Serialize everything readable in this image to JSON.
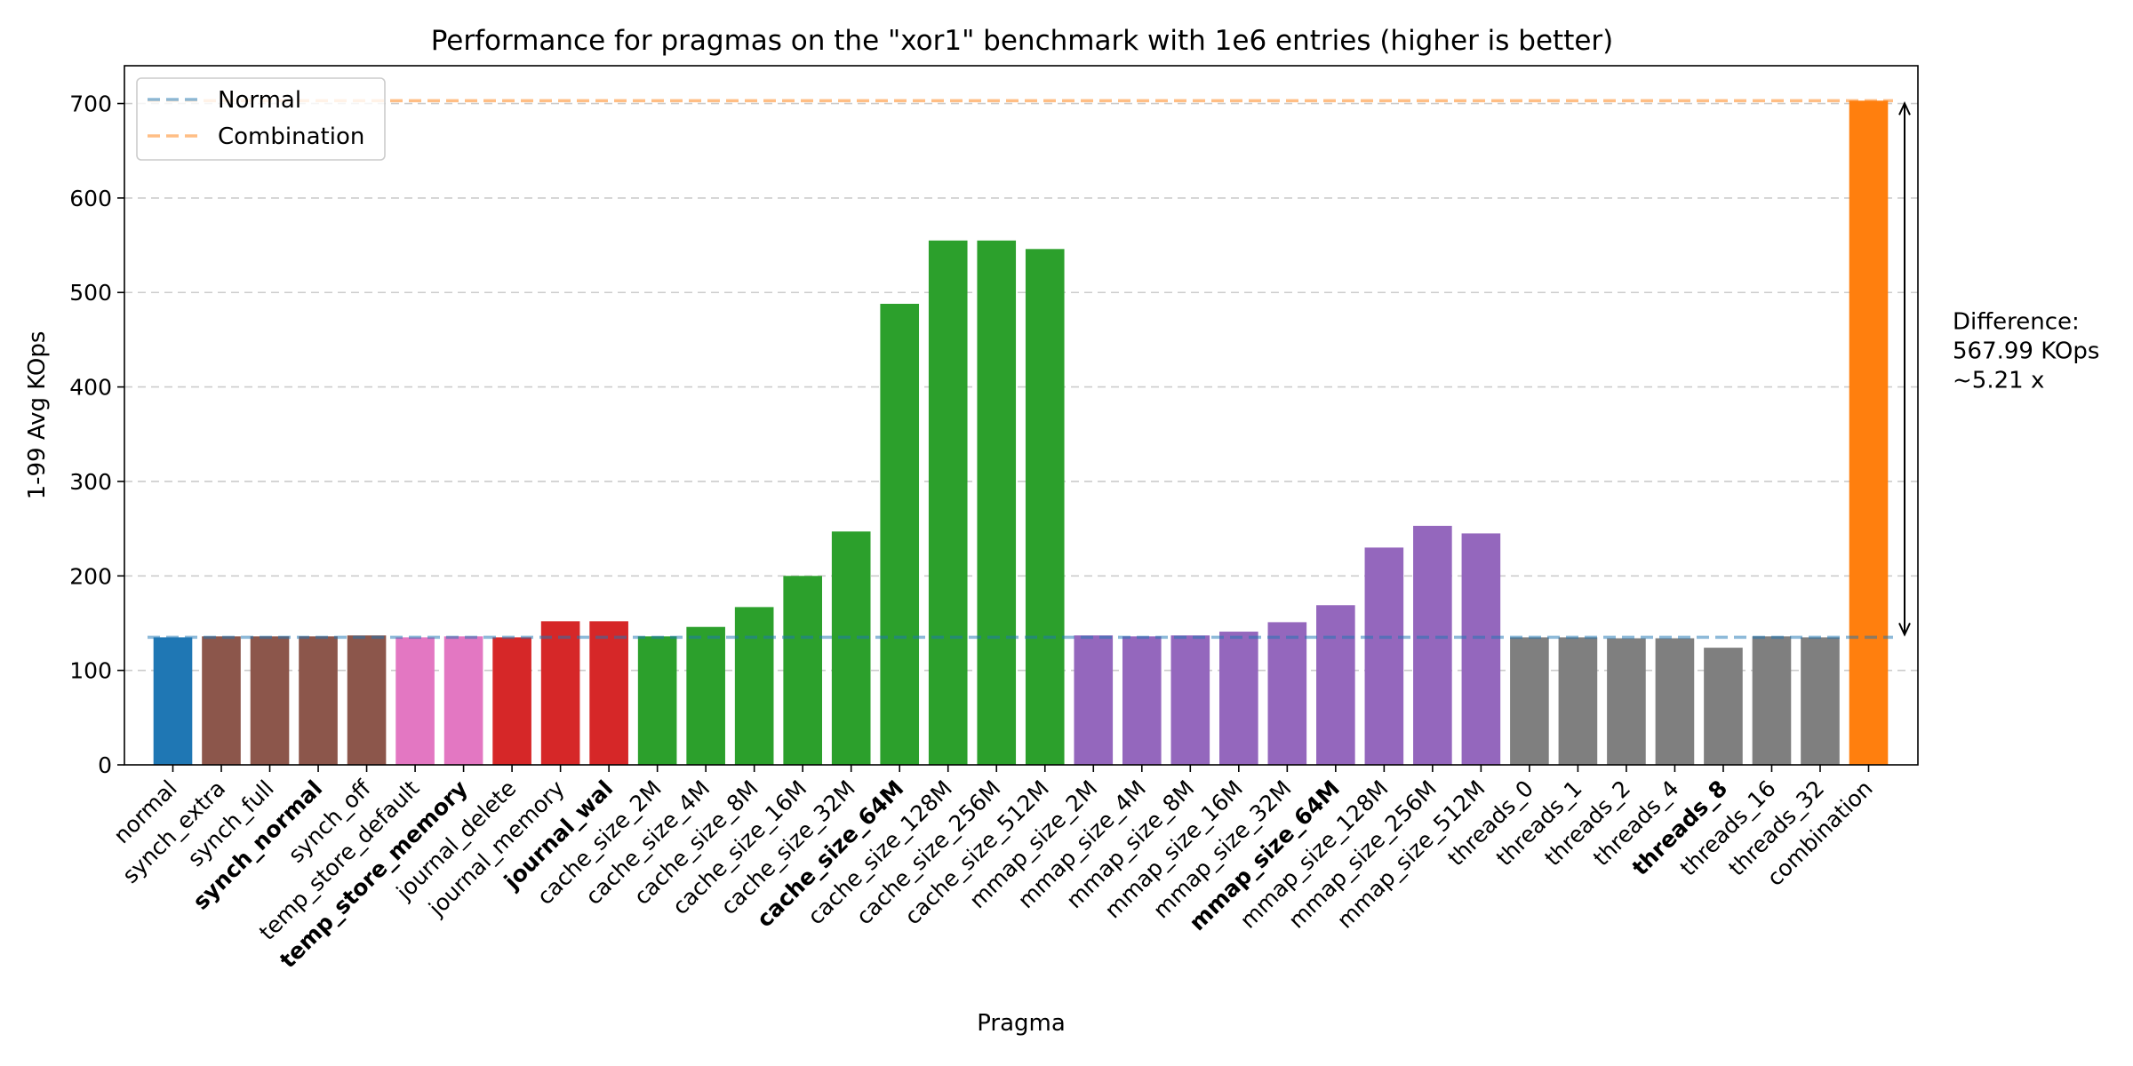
{
  "chart_data": {
    "type": "bar",
    "title": "Performance for pragmas on the \"xor1\" benchmark with 1e6 entries (higher is better)",
    "xlabel": "Pragma",
    "ylabel": "1-99 Avg KOps",
    "ylim": [
      0,
      740
    ],
    "yticks": [
      0,
      100,
      200,
      300,
      400,
      500,
      600,
      700
    ],
    "grid": "y-dashed",
    "legend": {
      "placement": "top-left",
      "entries": [
        {
          "label": "Normal",
          "color": "#1f77b4",
          "style": "dashed"
        },
        {
          "label": "Combination",
          "color": "#ff7f0e",
          "style": "dashed"
        }
      ]
    },
    "reference_lines": [
      {
        "name": "Normal",
        "value": 135,
        "color": "#1f77b4"
      },
      {
        "name": "Combination",
        "value": 703,
        "color": "#ff7f0e"
      }
    ],
    "annotation": {
      "lines": [
        "Difference:",
        "567.99 KOps",
        "~5.21 x"
      ],
      "from": 135,
      "to": 703
    },
    "bars": [
      {
        "label": "normal",
        "value": 135,
        "color": "#1f77b4",
        "bold": false
      },
      {
        "label": "synch_extra",
        "value": 136,
        "color": "#8c564b",
        "bold": false
      },
      {
        "label": "synch_full",
        "value": 136,
        "color": "#8c564b",
        "bold": false
      },
      {
        "label": "synch_normal",
        "value": 136,
        "color": "#8c564b",
        "bold": true
      },
      {
        "label": "synch_off",
        "value": 137,
        "color": "#8c564b",
        "bold": false
      },
      {
        "label": "temp_store_default",
        "value": 135,
        "color": "#e377c2",
        "bold": false
      },
      {
        "label": "temp_store_memory",
        "value": 136,
        "color": "#e377c2",
        "bold": true
      },
      {
        "label": "journal_delete",
        "value": 135,
        "color": "#d62728",
        "bold": false
      },
      {
        "label": "journal_memory",
        "value": 152,
        "color": "#d62728",
        "bold": false
      },
      {
        "label": "journal_wal",
        "value": 152,
        "color": "#d62728",
        "bold": true
      },
      {
        "label": "cache_size_2M",
        "value": 136,
        "color": "#2ca02c",
        "bold": false
      },
      {
        "label": "cache_size_4M",
        "value": 146,
        "color": "#2ca02c",
        "bold": false
      },
      {
        "label": "cache_size_8M",
        "value": 167,
        "color": "#2ca02c",
        "bold": false
      },
      {
        "label": "cache_size_16M",
        "value": 200,
        "color": "#2ca02c",
        "bold": false
      },
      {
        "label": "cache_size_32M",
        "value": 247,
        "color": "#2ca02c",
        "bold": false
      },
      {
        "label": "cache_size_64M",
        "value": 488,
        "color": "#2ca02c",
        "bold": true
      },
      {
        "label": "cache_size_128M",
        "value": 555,
        "color": "#2ca02c",
        "bold": false
      },
      {
        "label": "cache_size_256M",
        "value": 555,
        "color": "#2ca02c",
        "bold": false
      },
      {
        "label": "cache_size_512M",
        "value": 546,
        "color": "#2ca02c",
        "bold": false
      },
      {
        "label": "mmap_size_2M",
        "value": 137,
        "color": "#9467bd",
        "bold": false
      },
      {
        "label": "mmap_size_4M",
        "value": 136,
        "color": "#9467bd",
        "bold": false
      },
      {
        "label": "mmap_size_8M",
        "value": 137,
        "color": "#9467bd",
        "bold": false
      },
      {
        "label": "mmap_size_16M",
        "value": 141,
        "color": "#9467bd",
        "bold": false
      },
      {
        "label": "mmap_size_32M",
        "value": 151,
        "color": "#9467bd",
        "bold": false
      },
      {
        "label": "mmap_size_64M",
        "value": 169,
        "color": "#9467bd",
        "bold": true
      },
      {
        "label": "mmap_size_128M",
        "value": 230,
        "color": "#9467bd",
        "bold": false
      },
      {
        "label": "mmap_size_256M",
        "value": 253,
        "color": "#9467bd",
        "bold": false
      },
      {
        "label": "mmap_size_512M",
        "value": 245,
        "color": "#9467bd",
        "bold": false
      },
      {
        "label": "threads_0",
        "value": 135,
        "color": "#7f7f7f",
        "bold": false
      },
      {
        "label": "threads_1",
        "value": 135,
        "color": "#7f7f7f",
        "bold": false
      },
      {
        "label": "threads_2",
        "value": 134,
        "color": "#7f7f7f",
        "bold": false
      },
      {
        "label": "threads_4",
        "value": 134,
        "color": "#7f7f7f",
        "bold": false
      },
      {
        "label": "threads_8",
        "value": 124,
        "color": "#7f7f7f",
        "bold": true
      },
      {
        "label": "threads_16",
        "value": 136,
        "color": "#7f7f7f",
        "bold": false
      },
      {
        "label": "threads_32",
        "value": 135,
        "color": "#7f7f7f",
        "bold": false
      },
      {
        "label": "combination",
        "value": 703,
        "color": "#ff7f0e",
        "bold": false
      }
    ]
  }
}
